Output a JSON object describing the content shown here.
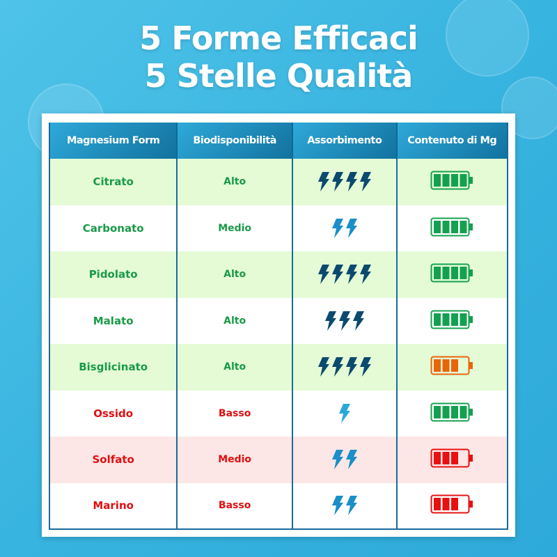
{
  "title": {
    "line1": "5 Forme Efficaci",
    "line2": "5 Stelle Qualità"
  },
  "table": {
    "headers": [
      "Magnesium Form",
      "Biodisponibilità",
      "Assorbimento",
      "Contenuto di Mg"
    ],
    "rows": [
      {
        "form": "Citrato",
        "bio": "Alto",
        "absorption_bolts": 4,
        "mg_battery": "full-green",
        "status": "good"
      },
      {
        "form": "Carbonato",
        "bio": "Medio",
        "absorption_bolts": 2,
        "mg_battery": "full-green",
        "status": "good"
      },
      {
        "form": "Pidolato",
        "bio": "Alto",
        "absorption_bolts": 4,
        "mg_battery": "full-green",
        "status": "good"
      },
      {
        "form": "Malato",
        "bio": "Alto",
        "absorption_bolts": 3,
        "mg_battery": "full-green",
        "status": "good"
      },
      {
        "form": "Bisglicinato",
        "bio": "Alto",
        "absorption_bolts": 4,
        "mg_battery": "three-quarter-orange",
        "status": "good"
      },
      {
        "form": "Ossido",
        "bio": "Basso",
        "absorption_bolts": 1,
        "mg_battery": "full-green",
        "status": "bad"
      },
      {
        "form": "Solfato",
        "bio": "Medio",
        "absorption_bolts": 2,
        "mg_battery": "three-quarter-red",
        "status": "bad"
      },
      {
        "form": "Marino",
        "bio": "Basso",
        "absorption_bolts": 2,
        "mg_battery": "three-quarter-red",
        "status": "bad"
      }
    ]
  },
  "colors": {
    "good_text": "#1a9a48",
    "bad_text": "#e01010",
    "green_row": "#e4fbd6",
    "red_row": "#fde6e6",
    "battery_green": "#14a050",
    "battery_orange": "#e8650a",
    "battery_red": "#e81010",
    "bolt_dark": "#0b4a6e",
    "bolt_mid": "#1a8fc8",
    "bolt_light": "#2aa8dc"
  }
}
